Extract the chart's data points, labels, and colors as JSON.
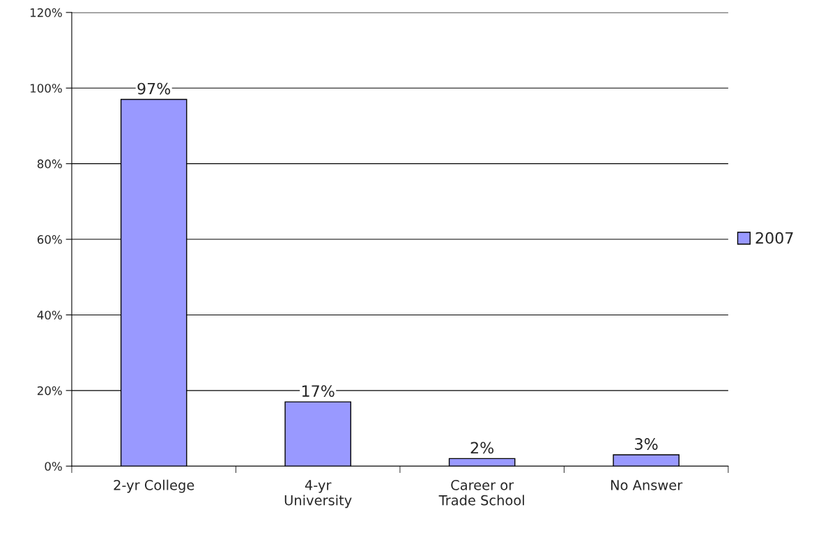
{
  "chart_data": {
    "type": "bar",
    "categories": [
      "2-yr College",
      "4-yr\nUniversity",
      "Career or\nTrade School",
      "No Answer"
    ],
    "series": [
      {
        "name": "2007",
        "color": "#9999ff",
        "values": [
          97,
          17,
          2,
          3
        ],
        "value_labels": [
          "97%",
          "17%",
          "2%",
          "3%"
        ]
      }
    ],
    "ylim": [
      0,
      120
    ],
    "yticks": [
      {
        "value": 0,
        "label": "0%"
      },
      {
        "value": 20,
        "label": "20%"
      },
      {
        "value": 40,
        "label": "40%"
      },
      {
        "value": 60,
        "label": "60%"
      },
      {
        "value": 80,
        "label": "80%"
      },
      {
        "value": 100,
        "label": "100%"
      },
      {
        "value": 120,
        "label": "120%"
      }
    ],
    "grid": "y",
    "legend": "right"
  }
}
